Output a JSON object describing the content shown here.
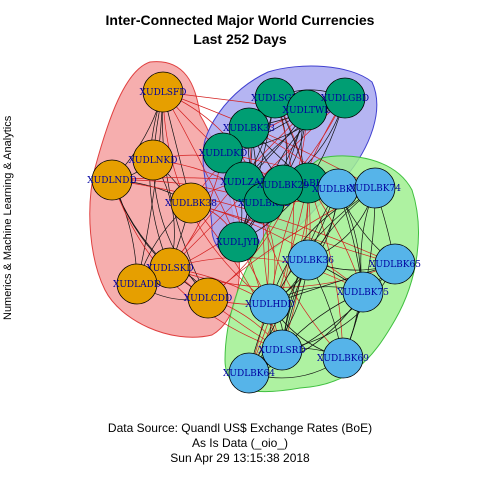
{
  "title_line1": "Inter-Connected Major World Currencies",
  "title_line2": "Last 252 Days",
  "ylabel": "Numerics & Machine Learning & Analytics",
  "caption": {
    "line1": "Data Source: Quandl US$ Exchange Rates (BoE)",
    "line2": "As Is Data (_oio_)",
    "line3": "Sun Apr 29 13:15:38 2018"
  },
  "colors": {
    "group_red_fill": "#f4a0a0",
    "group_red_stroke": "#e04040",
    "group_blue_fill": "#a8a8f0",
    "group_blue_stroke": "#4040d0",
    "group_green_fill": "#a0f090",
    "group_green_stroke": "#40c040",
    "node_orange": "#e69f00",
    "node_teal": "#009e73",
    "node_blue": "#56b4e9",
    "edge_black": "#111111",
    "edge_red": "#d42020",
    "label_color": "#0000a0"
  },
  "groups": [
    {
      "name": "group-orange",
      "color": "orange"
    },
    {
      "name": "group-teal",
      "color": "teal"
    },
    {
      "name": "group-blue",
      "color": "blue"
    }
  ],
  "nodes": [
    {
      "id": "XUDLSFD",
      "group": "orange"
    },
    {
      "id": "XUDLNKD",
      "group": "orange"
    },
    {
      "id": "XUDLNDD",
      "group": "orange"
    },
    {
      "id": "XUDLBK38",
      "group": "orange"
    },
    {
      "id": "XUDLSKD",
      "group": "orange"
    },
    {
      "id": "XUDLADD",
      "group": "orange"
    },
    {
      "id": "XUDLCDD",
      "group": "orange"
    },
    {
      "id": "XUDLSGD",
      "group": "teal"
    },
    {
      "id": "XUDLTWD",
      "group": "teal"
    },
    {
      "id": "XUDLGBD",
      "group": "teal"
    },
    {
      "id": "XUDLBK33",
      "group": "teal"
    },
    {
      "id": "XUDLDKD",
      "group": "teal"
    },
    {
      "id": "XUDLZAD",
      "group": "teal"
    },
    {
      "id": "XUDLBK32",
      "group": "teal"
    },
    {
      "id": "XUDLBK30",
      "group": "teal"
    },
    {
      "id": "XUDLBK29",
      "group": "teal"
    },
    {
      "id": "XUDLJYD",
      "group": "teal"
    },
    {
      "id": "XUDLBK89",
      "group": "blue"
    },
    {
      "id": "XUDLBK74",
      "group": "blue"
    },
    {
      "id": "XUDLBK36",
      "group": "blue"
    },
    {
      "id": "XUDLBK65",
      "group": "blue"
    },
    {
      "id": "XUDLBK75",
      "group": "blue"
    },
    {
      "id": "XUDLHDD",
      "group": "blue"
    },
    {
      "id": "XUDLSRD",
      "group": "blue"
    },
    {
      "id": "XUDLBK69",
      "group": "blue"
    },
    {
      "id": "XUDLBK64",
      "group": "blue"
    }
  ]
}
